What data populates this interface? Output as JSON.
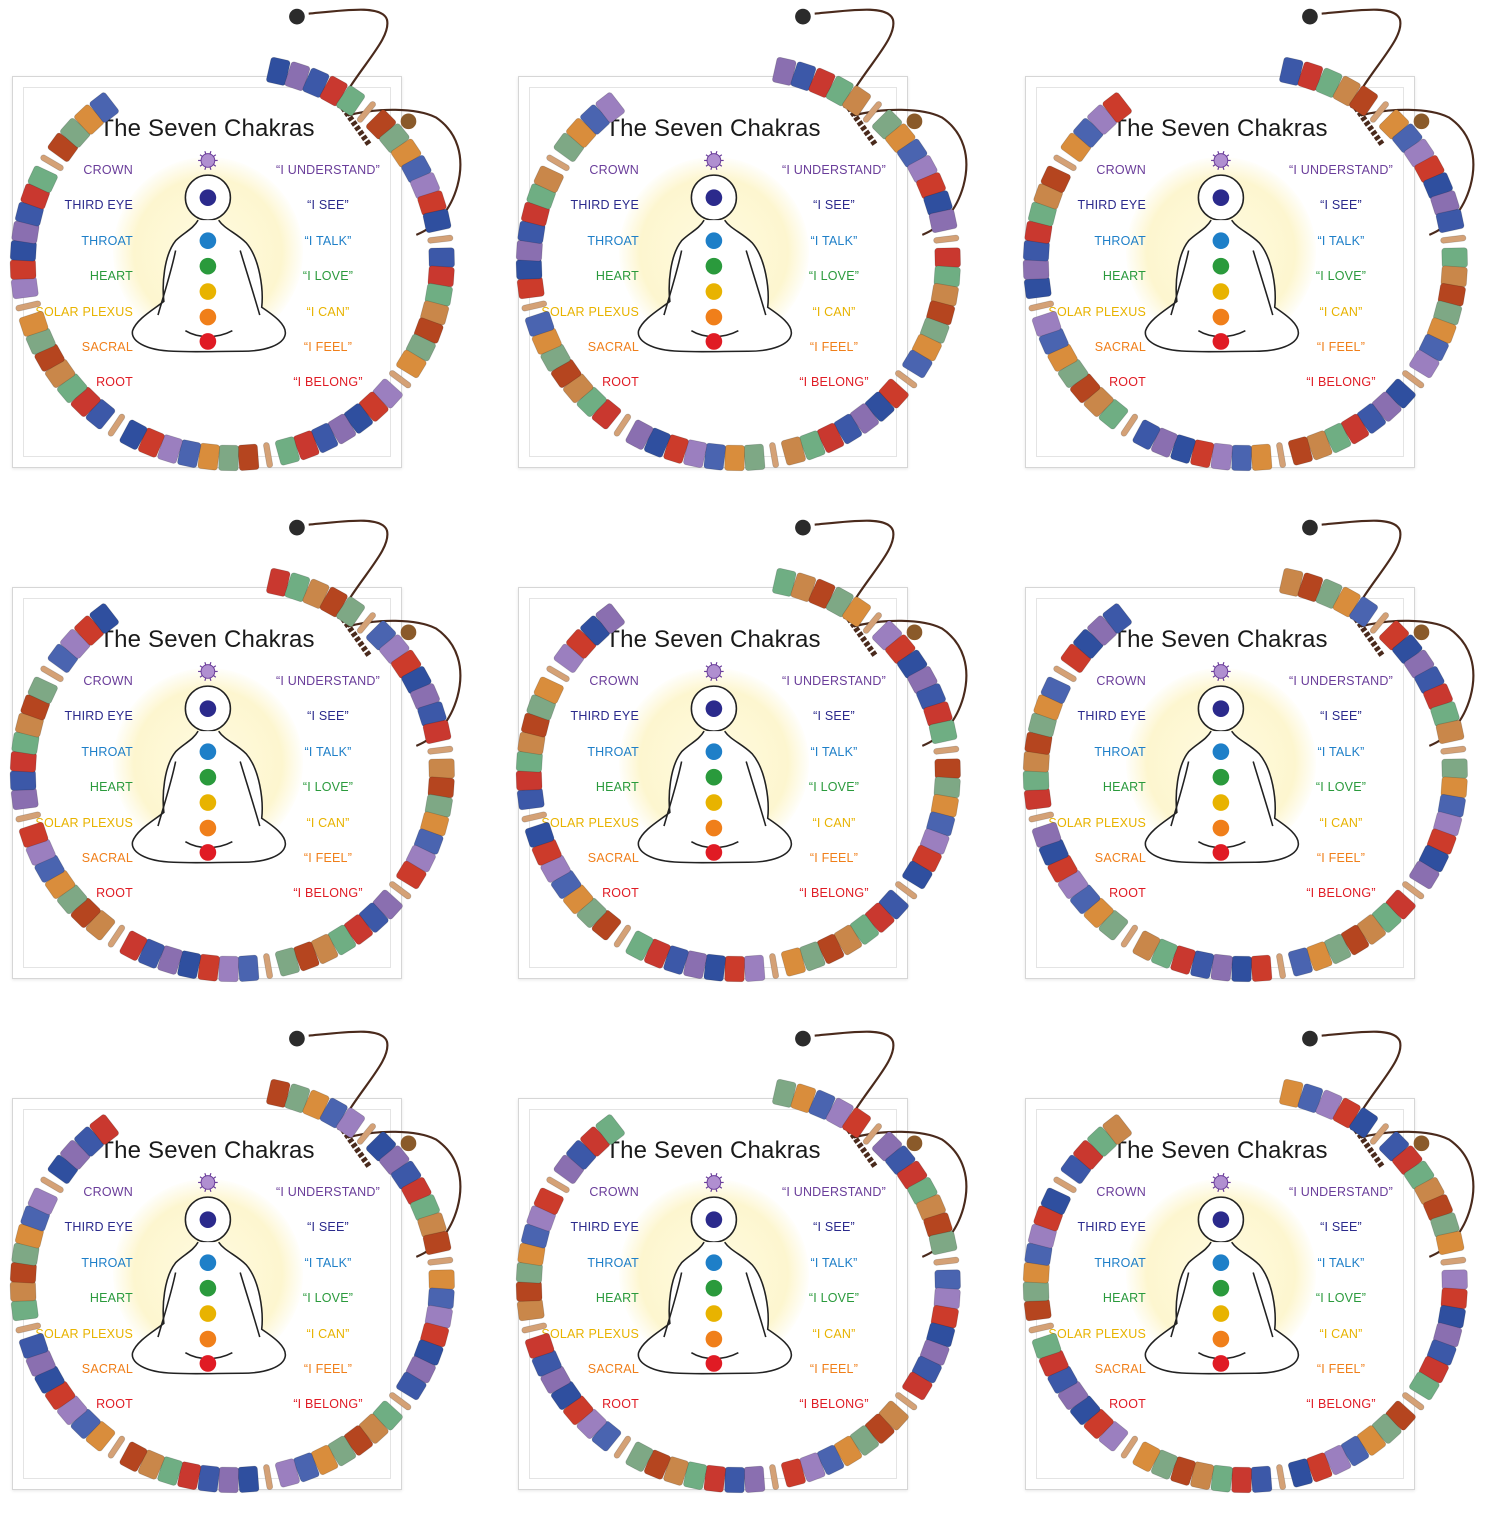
{
  "product_image": {
    "grid": {
      "columns": 3,
      "rows": 3,
      "count": 9
    },
    "card": {
      "title": "The Seven Chakras",
      "chakras": [
        {
          "name": "CROWN",
          "affirmation": "“I UNDERSTAND”",
          "color": "#6a3d9a"
        },
        {
          "name": "THIRD EYE",
          "affirmation": "“I SEE”",
          "color": "#2b2a8c"
        },
        {
          "name": "THROAT",
          "affirmation": "“I TALK”",
          "color": "#1e7fc8"
        },
        {
          "name": "HEART",
          "affirmation": "“I LOVE”",
          "color": "#2a9a3c"
        },
        {
          "name": "SOLAR PLEXUS",
          "affirmation": "“I CAN”",
          "color": "#e8b300"
        },
        {
          "name": "SACRAL",
          "affirmation": "“I FEEL”",
          "color": "#f07f1a"
        },
        {
          "name": "ROOT",
          "affirmation": "“I BELONG”",
          "color": "#e01b24"
        }
      ]
    },
    "bracelet": {
      "bead_colors": [
        "#2f4f9f",
        "#8a6fb0",
        "#3c58a8",
        "#c9382f",
        "#6fae83",
        "#c9874a",
        "#b5451f",
        "#7ea885",
        "#d98d3c",
        "#4a64b0",
        "#9b7fbf",
        "#cc3b2b"
      ],
      "spacer_color": "#d4a176",
      "cord_color": "#4a2a1c",
      "end_bead_colors": [
        "#2b2b2b",
        "#8a5a2a"
      ]
    }
  }
}
